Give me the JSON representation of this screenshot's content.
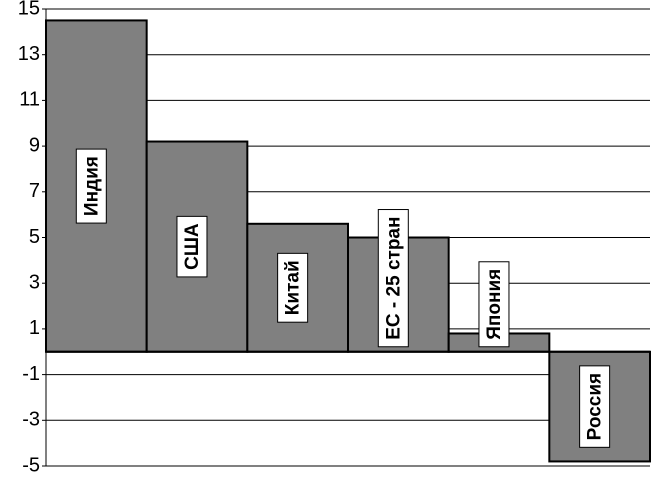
{
  "chart_data": {
    "type": "bar",
    "categories": [
      "Индия",
      "США",
      "Китай",
      "ЕС - 25 стран",
      "Япония",
      "Россия"
    ],
    "values": [
      14.5,
      9.2,
      5.6,
      5.0,
      0.8,
      -4.8
    ],
    "color": "#808080",
    "ylim": [
      -5,
      15
    ],
    "yticks": [
      -5,
      -3,
      -1,
      1,
      3,
      5,
      7,
      9,
      11,
      13,
      15
    ],
    "grid": true
  }
}
